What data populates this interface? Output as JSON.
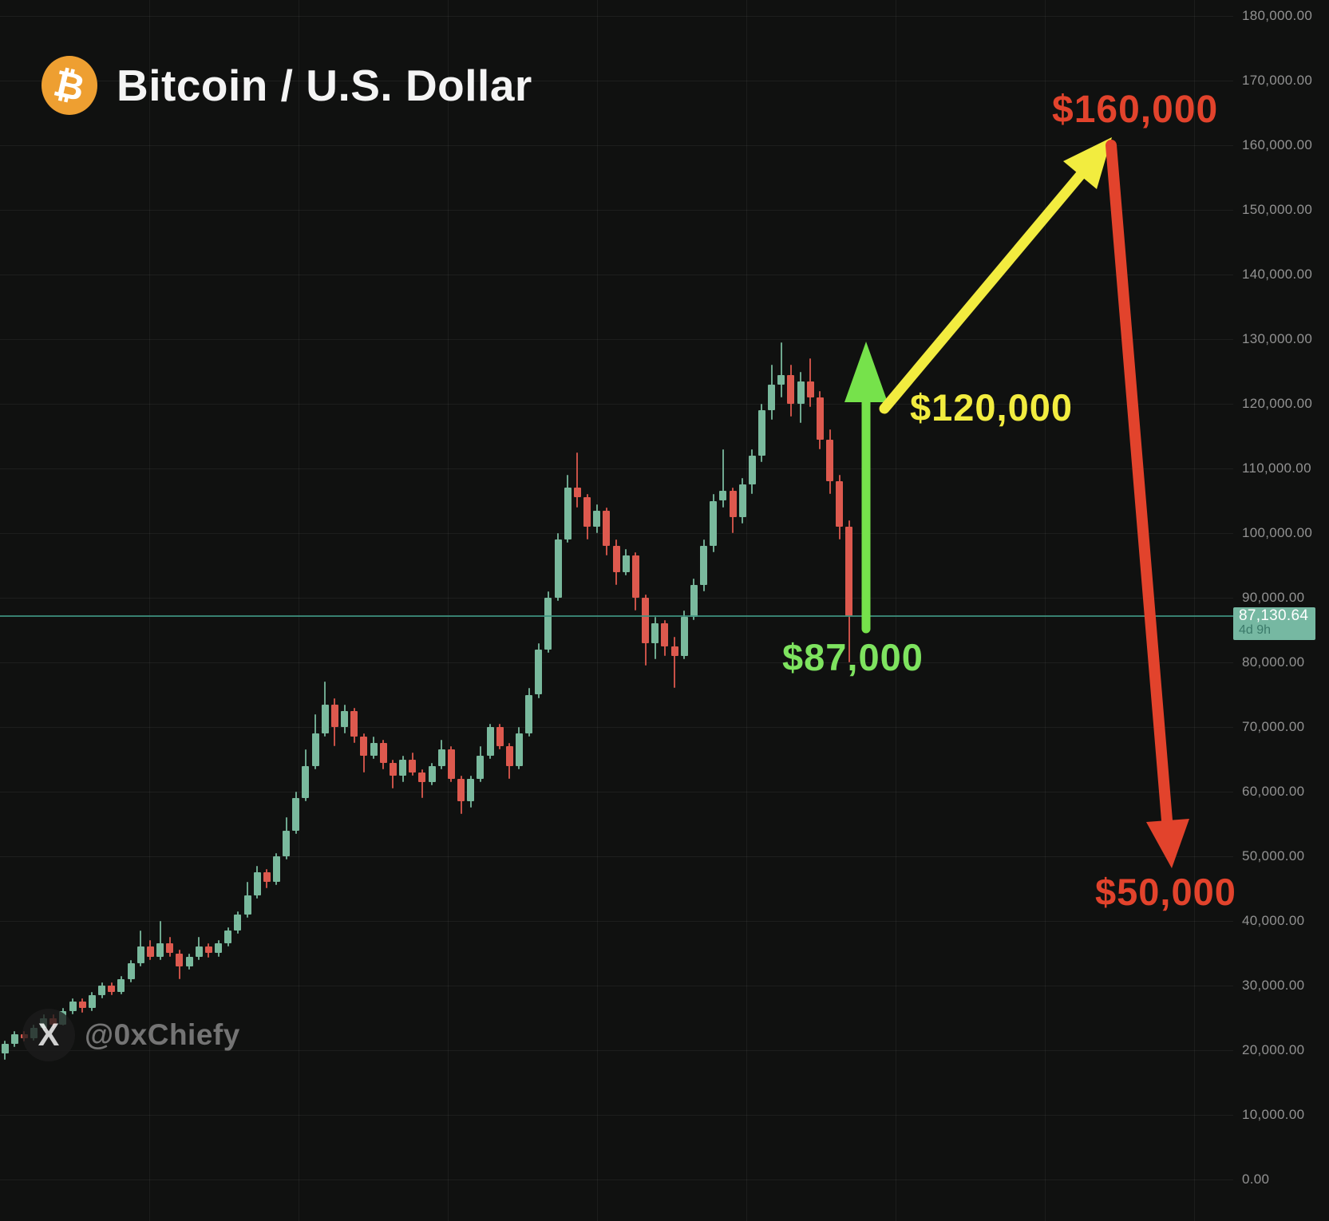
{
  "header": {
    "title": "Bitcoin / U.S. Dollar",
    "logo_symbol": "₿"
  },
  "watermark": {
    "icon_symbol": "X",
    "handle": "@0xChiefy"
  },
  "annotations": {
    "label_87k": {
      "text": "$87,000",
      "color": "#7ee35f"
    },
    "label_120k": {
      "text": "$120,000",
      "color": "#f2ec3f"
    },
    "label_160k": {
      "text": "$160,000",
      "color": "#e2432c"
    },
    "label_50k": {
      "text": "$50,000",
      "color": "#e2432c"
    },
    "green_arrow_color": "#76e24b",
    "yellow_arrow_color": "#f2ec3f",
    "red_arrow_color": "#e2432c"
  },
  "last_price": {
    "price_label": "87,130.64",
    "countdown": "4d 9h",
    "value": 87130.64
  },
  "price_axis": {
    "ticks": [
      {
        "label": "180,000.00",
        "value": 180000
      },
      {
        "label": "170,000.00",
        "value": 170000
      },
      {
        "label": "160,000.00",
        "value": 160000
      },
      {
        "label": "150,000.00",
        "value": 150000
      },
      {
        "label": "140,000.00",
        "value": 140000
      },
      {
        "label": "130,000.00",
        "value": 130000
      },
      {
        "label": "120,000.00",
        "value": 120000
      },
      {
        "label": "110,000.00",
        "value": 110000
      },
      {
        "label": "100,000.00",
        "value": 100000
      },
      {
        "label": "90,000.00",
        "value": 90000
      },
      {
        "label": "80,000.00",
        "value": 80000
      },
      {
        "label": "70,000.00",
        "value": 70000
      },
      {
        "label": "60,000.00",
        "value": 60000
      },
      {
        "label": "50,000.00",
        "value": 50000
      },
      {
        "label": "40,000.00",
        "value": 40000
      },
      {
        "label": "30,000.00",
        "value": 30000
      },
      {
        "label": "20,000.00",
        "value": 20000
      },
      {
        "label": "10,000.00",
        "value": 10000
      },
      {
        "label": "0.00",
        "value": 0
      }
    ]
  },
  "chart_data": {
    "type": "candlestick",
    "title": "Bitcoin / U.S. Dollar",
    "price_unit": "USD, candle values in thousands",
    "y_axis": {
      "min": 0,
      "max": 180000,
      "tick_step": 10000,
      "grid": true
    },
    "x_axis": {
      "labels_visible": false
    },
    "up_color": "#79b99d",
    "down_color": "#dd594e",
    "last_close": 87.13,
    "annotations": [
      {
        "text": "$87,000",
        "meaning": "current price area, green arrow base"
      },
      {
        "text": "$120,000",
        "meaning": "first upside target of green/yellow arrows"
      },
      {
        "text": "$160,000",
        "meaning": "upper target at yellow arrow tip"
      },
      {
        "text": "$50,000",
        "meaning": "downside target at red arrow tip"
      }
    ],
    "candles": [
      [
        19.5,
        21.5,
        18.5,
        21
      ],
      [
        21,
        23,
        20.5,
        22.5
      ],
      [
        22.5,
        23,
        21.3,
        21.8
      ],
      [
        21.8,
        24,
        21.5,
        23.5
      ],
      [
        23.5,
        25.5,
        23,
        25
      ],
      [
        25,
        25.5,
        23.5,
        24
      ],
      [
        24,
        26.5,
        23.8,
        26
      ],
      [
        26,
        28,
        25.5,
        27.5
      ],
      [
        27.5,
        28,
        25.8,
        26.5
      ],
      [
        26.5,
        29,
        26,
        28.5
      ],
      [
        28.5,
        30.5,
        28,
        30
      ],
      [
        30,
        30.5,
        28.5,
        29
      ],
      [
        29,
        31.5,
        28.7,
        31
      ],
      [
        31,
        34,
        30.5,
        33.5
      ],
      [
        33.5,
        38.5,
        33,
        36
      ],
      [
        36,
        37,
        34,
        34.5
      ],
      [
        34.5,
        40,
        34,
        36.5
      ],
      [
        36.5,
        37.5,
        34.5,
        35
      ],
      [
        35,
        35.5,
        31,
        33
      ],
      [
        33,
        35,
        32.5,
        34.5
      ],
      [
        34.5,
        37.5,
        34,
        36
      ],
      [
        36,
        36.5,
        34.3,
        35
      ],
      [
        35,
        37,
        34.5,
        36.5
      ],
      [
        36.5,
        39,
        36,
        38.5
      ],
      [
        38.5,
        41.5,
        38,
        41
      ],
      [
        41,
        46,
        40.5,
        44
      ],
      [
        44,
        48.5,
        43.5,
        47.5
      ],
      [
        47.5,
        48,
        45,
        46
      ],
      [
        46,
        50.5,
        45.5,
        50
      ],
      [
        50,
        56,
        49.5,
        54
      ],
      [
        54,
        60,
        53.5,
        59
      ],
      [
        59,
        66.5,
        58.5,
        64
      ],
      [
        64,
        72,
        63.5,
        69
      ],
      [
        69,
        77,
        68.5,
        73.5
      ],
      [
        73.5,
        74.5,
        67,
        70
      ],
      [
        70,
        73.5,
        69,
        72.5
      ],
      [
        72.5,
        73,
        67.5,
        68.5
      ],
      [
        68.5,
        69,
        63,
        65.5
      ],
      [
        65.5,
        68.5,
        65,
        67.5
      ],
      [
        67.5,
        68,
        63.5,
        64.5
      ],
      [
        64.5,
        65,
        60.5,
        62.5
      ],
      [
        62.5,
        65.5,
        61.5,
        65
      ],
      [
        65,
        66,
        62.5,
        63
      ],
      [
        63,
        63.5,
        59,
        61.5
      ],
      [
        61.5,
        64.5,
        61,
        64
      ],
      [
        64,
        68,
        63.5,
        66.5
      ],
      [
        66.5,
        67,
        61.5,
        62
      ],
      [
        62,
        62.5,
        56.5,
        58.5
      ],
      [
        58.5,
        62.5,
        57.5,
        62
      ],
      [
        62,
        67,
        61.5,
        65.5
      ],
      [
        65.5,
        70.5,
        65,
        70
      ],
      [
        70,
        70.5,
        66.5,
        67
      ],
      [
        67,
        67.5,
        62,
        64
      ],
      [
        64,
        70,
        63.5,
        69
      ],
      [
        69,
        76,
        68.5,
        75
      ],
      [
        75,
        83,
        74.5,
        82
      ],
      [
        82,
        91,
        81.5,
        90
      ],
      [
        90,
        100,
        89.5,
        99
      ],
      [
        99,
        109,
        98.5,
        107
      ],
      [
        107,
        112.5,
        104,
        105.5
      ],
      [
        105.5,
        106,
        99,
        101
      ],
      [
        101,
        104.5,
        100,
        103.5
      ],
      [
        103.5,
        104,
        96.5,
        98
      ],
      [
        98,
        99,
        92,
        94
      ],
      [
        94,
        97.5,
        93.5,
        96.5
      ],
      [
        96.5,
        97,
        88,
        90
      ],
      [
        90,
        90.5,
        79.5,
        83
      ],
      [
        83,
        87,
        80.5,
        86
      ],
      [
        86,
        86.5,
        81,
        82.5
      ],
      [
        82.5,
        84,
        76,
        81
      ],
      [
        81,
        88,
        80.5,
        87
      ],
      [
        87,
        93,
        86.5,
        92
      ],
      [
        92,
        99,
        91,
        98
      ],
      [
        98,
        106,
        97,
        105
      ],
      [
        105,
        113,
        104,
        106.5
      ],
      [
        106.5,
        107,
        100,
        102.5
      ],
      [
        102.5,
        108.5,
        101.5,
        107.5
      ],
      [
        107.5,
        113,
        106,
        112
      ],
      [
        112,
        120,
        111,
        119
      ],
      [
        119,
        126,
        117.5,
        123
      ],
      [
        123,
        129.5,
        121,
        124.5
      ],
      [
        124.5,
        126,
        118,
        120
      ],
      [
        120,
        125,
        117,
        123.5
      ],
      [
        123.5,
        127,
        119.5,
        121
      ],
      [
        121,
        122,
        113,
        114.5
      ],
      [
        114.5,
        116,
        106,
        108
      ],
      [
        108,
        109,
        99,
        101
      ],
      [
        101,
        102,
        80,
        87.13
      ]
    ]
  }
}
